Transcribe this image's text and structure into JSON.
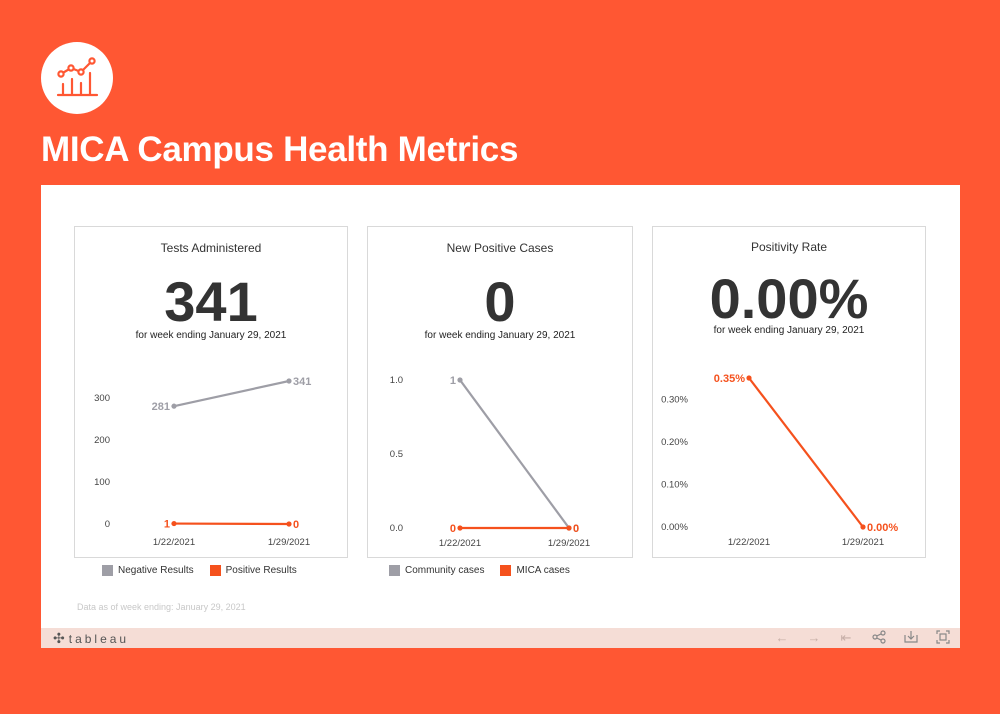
{
  "page": {
    "title": "MICA Campus Health Metrics",
    "logo_icon": "chart-line-icon"
  },
  "colors": {
    "brand": "#ff5733",
    "gray_series": "#9e9ea6",
    "orange_series": "#f5511d"
  },
  "cards": [
    {
      "title": "Tests Administered",
      "big_value": "341",
      "subtitle": "for week ending January 29, 2021",
      "legend": [
        "Negative Results",
        "Positive Results"
      ]
    },
    {
      "title": "New Positive Cases",
      "big_value": "0",
      "subtitle": "for week ending January 29, 2021",
      "legend": [
        "Community cases",
        "MICA cases"
      ]
    },
    {
      "title": "Positivity Rate",
      "big_value": "0.00%",
      "subtitle": "for week ending January 29, 2021",
      "legend": []
    }
  ],
  "chart_data": [
    {
      "type": "line",
      "categories": [
        "1/22/2021",
        "1/29/2021"
      ],
      "series": [
        {
          "name": "Negative Results",
          "values": [
            281,
            341
          ],
          "labels": [
            "281",
            "341"
          ],
          "color": "#9e9ea6"
        },
        {
          "name": "Positive Results",
          "values": [
            1,
            0
          ],
          "labels": [
            "1",
            "0"
          ],
          "color": "#f5511d"
        }
      ],
      "yticks": [
        "0",
        "100",
        "200",
        "300"
      ],
      "ytick_values": [
        0,
        100,
        200,
        300
      ],
      "ylim": [
        0,
        341
      ],
      "grid": false
    },
    {
      "type": "line",
      "categories": [
        "1/22/2021",
        "1/29/2021"
      ],
      "series": [
        {
          "name": "Community cases",
          "values": [
            1,
            0
          ],
          "labels": [
            "1",
            "0"
          ],
          "color": "#9e9ea6"
        },
        {
          "name": "MICA cases",
          "values": [
            0,
            0
          ],
          "labels": [
            "0",
            "0"
          ],
          "color": "#f5511d"
        }
      ],
      "yticks": [
        "0.0",
        "0.5",
        "1.0"
      ],
      "ytick_values": [
        0,
        0.5,
        1.0
      ],
      "ylim": [
        0,
        1.0
      ],
      "grid": false
    },
    {
      "type": "line",
      "categories": [
        "1/22/2021",
        "1/29/2021"
      ],
      "series": [
        {
          "values": [
            0.35,
            0.0
          ],
          "labels": [
            "0.35%",
            "0.00%"
          ],
          "color": "#f5511d"
        }
      ],
      "yticks": [
        "0.00%",
        "0.10%",
        "0.20%",
        "0.30%"
      ],
      "ytick_values": [
        0,
        0.1,
        0.2,
        0.3
      ],
      "ylim": [
        0,
        0.35
      ],
      "grid": false
    }
  ],
  "footer": {
    "note": "Data as of week ending: January 29, 2021",
    "tableau_label": "tableau",
    "icons": [
      "undo-icon",
      "redo-icon",
      "revert-icon",
      "share-icon",
      "download-icon",
      "fullscreen-icon"
    ]
  }
}
